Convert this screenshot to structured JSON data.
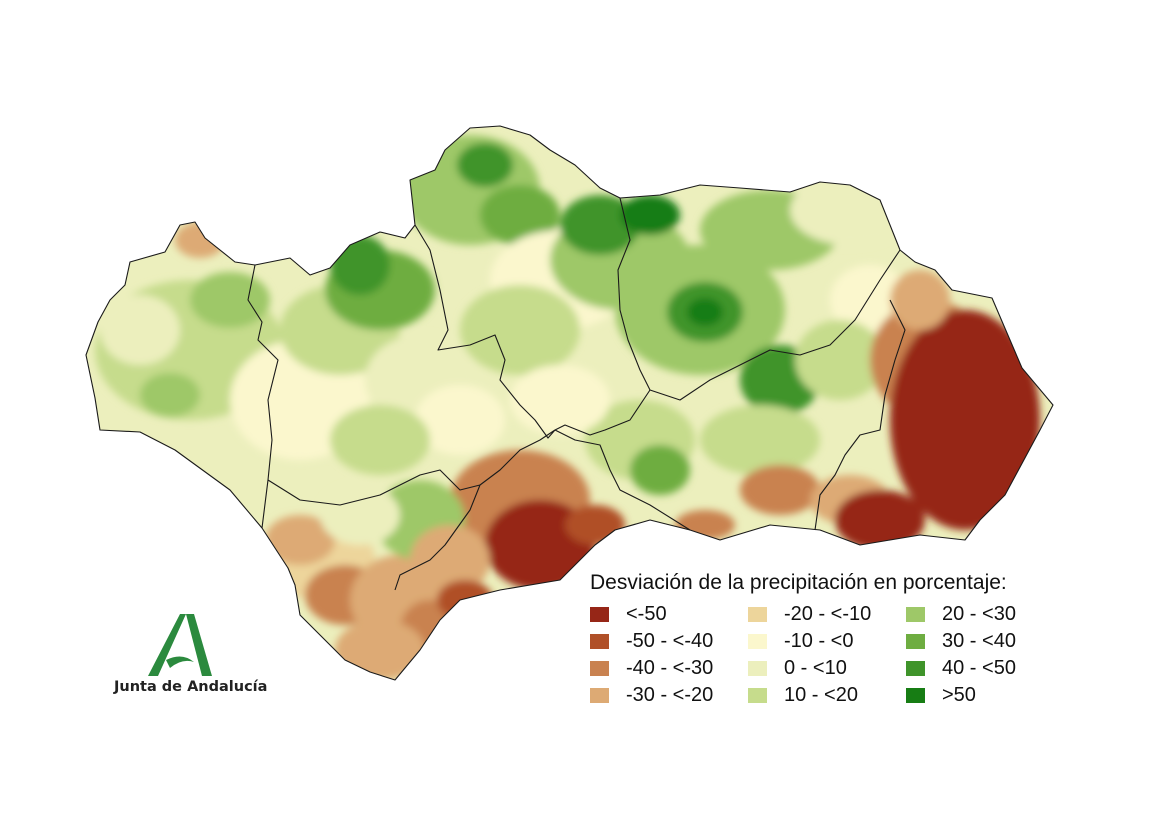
{
  "legend": {
    "title": "Desviación de la precipitación en porcentaje:",
    "items": [
      {
        "label": "<-50",
        "color": "#962617"
      },
      {
        "label": "-50 - <-40",
        "color": "#b05028"
      },
      {
        "label": "-40 - <-30",
        "color": "#c98250"
      },
      {
        "label": "-30 - <-20",
        "color": "#ddaa74"
      },
      {
        "label": "-20 - <-10",
        "color": "#edd59b"
      },
      {
        "label": "-10 - <0",
        "color": "#fbf7cd"
      },
      {
        "label": "0 - <10",
        "color": "#ecefbd"
      },
      {
        "label": "10 - <20",
        "color": "#c6dc8c"
      },
      {
        "label": "20 - <30",
        "color": "#9ec868"
      },
      {
        "label": "30 - <40",
        "color": "#6ead41"
      },
      {
        "label": "40 - <50",
        "color": "#3f942a"
      },
      {
        "label": ">50",
        "color": "#177d14"
      }
    ]
  },
  "logo": {
    "text": "Junta de Andalucía",
    "color": "#2b8a3e"
  }
}
